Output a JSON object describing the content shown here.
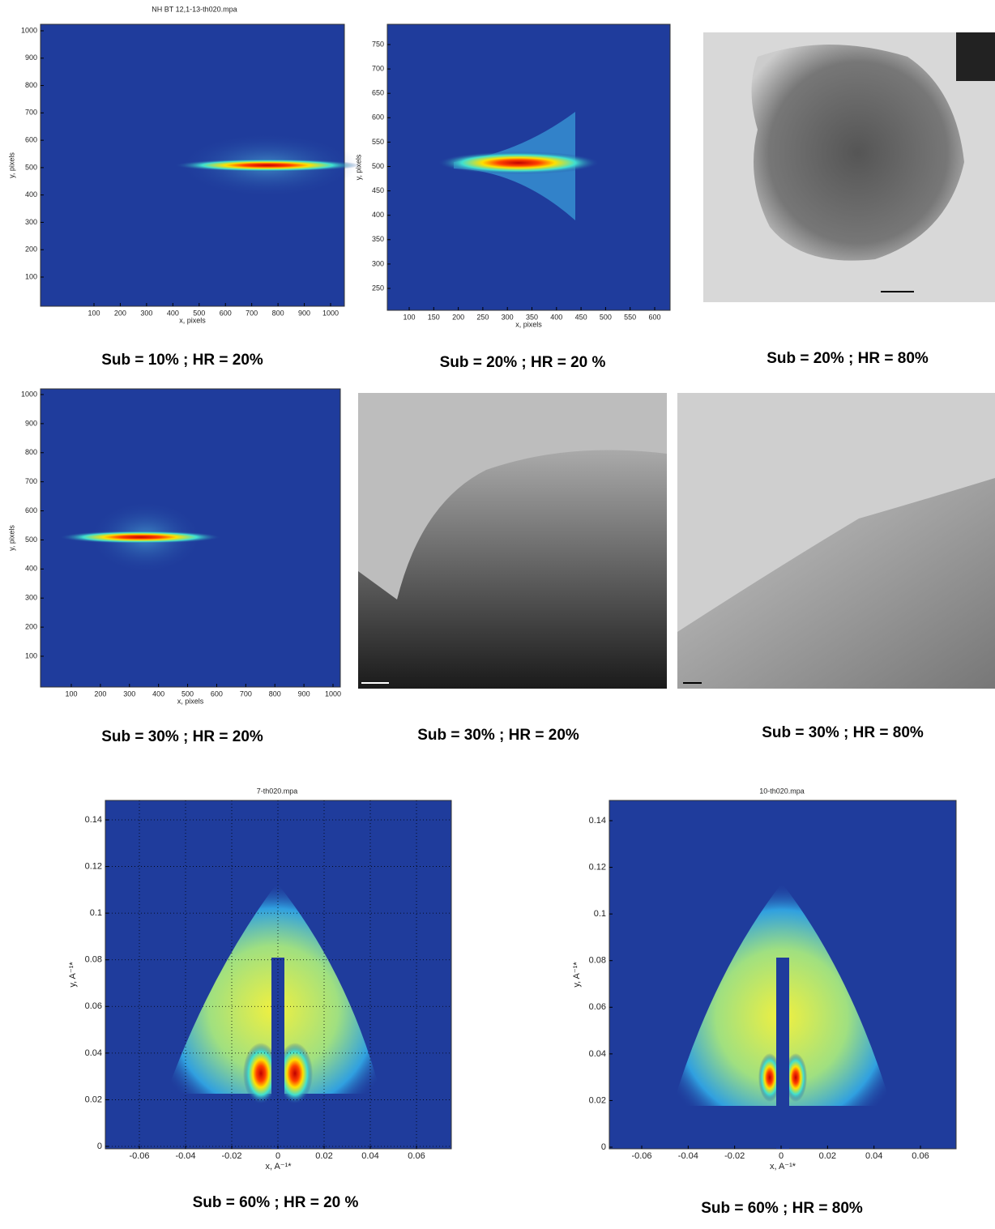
{
  "panels": [
    {
      "title": "NH BT 12,1-13-th020.mpa",
      "x_label": "x, pixels",
      "y_label": "y, pixels",
      "xticks": [
        100,
        200,
        300,
        400,
        500,
        600,
        700,
        800,
        900,
        1000
      ],
      "yticks": [
        100,
        200,
        300,
        400,
        500,
        600,
        700,
        800,
        900,
        1000
      ],
      "caption": "Sub = 10% ; HR = 20%"
    },
    {
      "x_label": "x, pixels",
      "y_label": "y, pixels",
      "xticks": [
        100,
        150,
        200,
        250,
        300,
        350,
        400,
        450,
        500,
        550,
        600
      ],
      "yticks": [
        250,
        300,
        350,
        400,
        450,
        500,
        550,
        600,
        650,
        700,
        750
      ],
      "caption": "Sub = 20% ; HR = 20 %"
    },
    {
      "caption": "Sub = 20% ; HR = 80%"
    },
    {
      "x_label": "x, pixels",
      "y_label": "y, pixels",
      "xticks": [
        100,
        200,
        300,
        400,
        500,
        600,
        700,
        800,
        900,
        1000
      ],
      "yticks": [
        100,
        200,
        300,
        400,
        500,
        600,
        700,
        800,
        900,
        1000
      ],
      "caption": "Sub = 30% ; HR = 20%"
    },
    {
      "caption": "Sub = 30% ; HR = 20%"
    },
    {
      "caption": "Sub = 30% ; HR = 80%"
    },
    {
      "title": "7-th020.mpa",
      "x_label": "x, A⁻¹*",
      "y_label": "y, A⁻¹*",
      "xticks": [
        -0.06,
        -0.04,
        -0.02,
        0,
        0.02,
        0.04,
        0.06
      ],
      "yticks": [
        0,
        0.02,
        0.04,
        0.06,
        0.08,
        0.1,
        0.12,
        0.14
      ],
      "grid": true,
      "caption": "Sub = 60% ; HR = 20 %"
    },
    {
      "title": "10-th020.mpa",
      "x_label": "x, A⁻¹*",
      "y_label": "y, A⁻¹*",
      "xticks": [
        -0.06,
        -0.04,
        -0.02,
        0,
        0.02,
        0.04,
        0.06
      ],
      "yticks": [
        0,
        0.02,
        0.04,
        0.06,
        0.08,
        0.1,
        0.12,
        0.14
      ],
      "caption": "Sub = 60% ; HR = 80%"
    }
  ]
}
